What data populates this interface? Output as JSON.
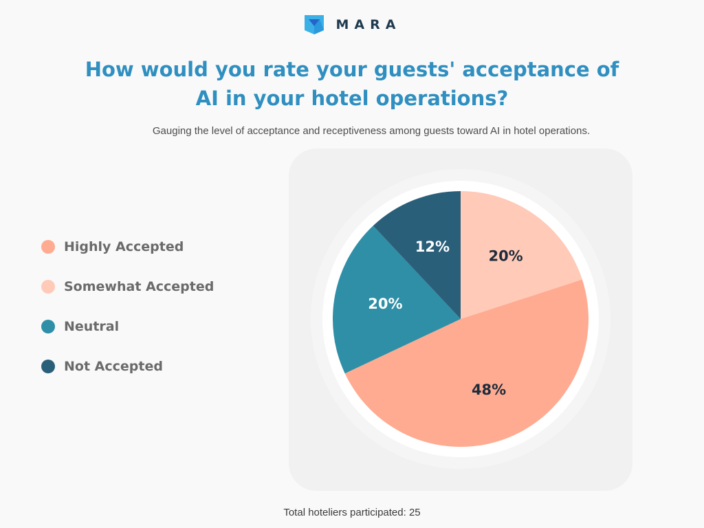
{
  "brand": {
    "name": "MARA",
    "colors": {
      "primary": "#3bb0e6",
      "dark": "#2563c9"
    }
  },
  "title_line1": "How would you rate your guests' acceptance of",
  "title_line2": "AI in your hotel operations?",
  "subtitle": "Gauging the level of acceptance and receptiveness among guests toward AI in hotel operations.",
  "footer": "Total hoteliers participated: 25",
  "chart_data": {
    "type": "pie",
    "title": "How would you rate your guests' acceptance of AI in your hotel operations?",
    "categories": [
      "Highly Accepted",
      "Somewhat Accepted",
      "Neutral",
      "Not Accepted"
    ],
    "values": [
      48,
      20,
      20,
      12
    ],
    "value_labels": [
      "48%",
      "20%",
      "20%",
      "12%"
    ],
    "colors": [
      "#ffab91",
      "#ffcab8",
      "#2e8fa6",
      "#2a5f7a"
    ],
    "label_colors": [
      "#1d2b3a",
      "#1d2b3a",
      "#ffffff",
      "#ffffff"
    ],
    "slice_order": [
      "Somewhat Accepted",
      "Highly Accepted",
      "Neutral",
      "Not Accepted"
    ],
    "legend_position": "left",
    "unit": "%"
  }
}
